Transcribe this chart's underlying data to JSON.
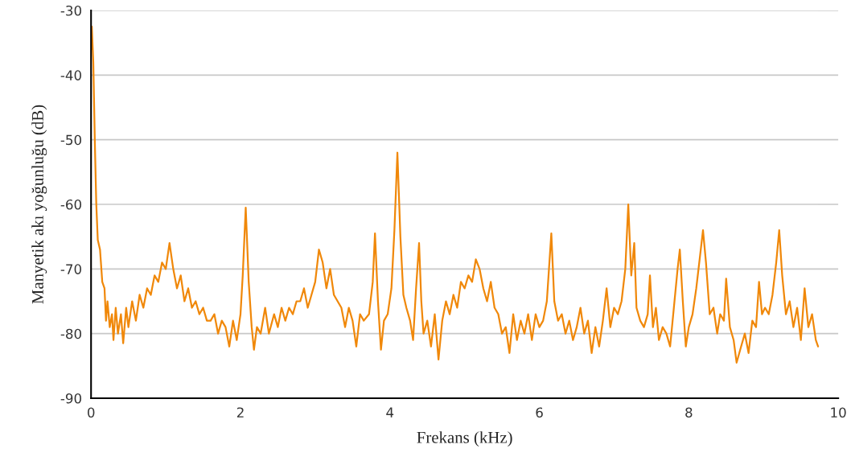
{
  "chart_data": {
    "type": "line",
    "xlabel": "Frekans (kHz)",
    "ylabel": "Manyetik akı yoğunluğu (dB)",
    "xlim": [
      0,
      10
    ],
    "xticks": [
      0,
      2,
      4,
      6,
      8,
      10
    ],
    "ylim": [
      -90,
      -30
    ],
    "yticks": [
      -90,
      -80,
      -70,
      -60,
      -50,
      -40,
      -30
    ],
    "grid": "y",
    "marker": "none",
    "line_style": "solid",
    "series": [
      {
        "color": "#f0880a",
        "x": [
          0,
          0.01,
          0.03,
          0.05,
          0.07,
          0.09,
          0.12,
          0.15,
          0.18,
          0.2,
          0.22,
          0.25,
          0.28,
          0.3,
          0.33,
          0.36,
          0.4,
          0.43,
          0.47,
          0.5,
          0.55,
          0.6,
          0.65,
          0.7,
          0.75,
          0.8,
          0.85,
          0.9,
          0.95,
          1.0,
          1.05,
          1.1,
          1.15,
          1.2,
          1.25,
          1.3,
          1.35,
          1.4,
          1.45,
          1.5,
          1.55,
          1.6,
          1.65,
          1.7,
          1.75,
          1.8,
          1.85,
          1.9,
          1.95,
          2.0,
          2.03,
          2.07,
          2.11,
          2.15,
          2.18,
          2.22,
          2.27,
          2.33,
          2.38,
          2.45,
          2.5,
          2.55,
          2.6,
          2.65,
          2.7,
          2.75,
          2.8,
          2.85,
          2.9,
          2.95,
          3.0,
          3.05,
          3.1,
          3.15,
          3.2,
          3.25,
          3.3,
          3.35,
          3.4,
          3.45,
          3.5,
          3.55,
          3.6,
          3.65,
          3.72,
          3.77,
          3.8,
          3.84,
          3.88,
          3.92,
          3.97,
          4.02,
          4.06,
          4.1,
          4.14,
          4.18,
          4.22,
          4.27,
          4.31,
          4.35,
          4.39,
          4.42,
          4.45,
          4.5,
          4.55,
          4.6,
          4.65,
          4.7,
          4.75,
          4.8,
          4.85,
          4.9,
          4.95,
          5.0,
          5.05,
          5.1,
          5.15,
          5.2,
          5.25,
          5.3,
          5.35,
          5.4,
          5.45,
          5.5,
          5.55,
          5.6,
          5.65,
          5.7,
          5.75,
          5.8,
          5.85,
          5.9,
          5.95,
          6.0,
          6.05,
          6.1,
          6.16,
          6.2,
          6.25,
          6.3,
          6.35,
          6.4,
          6.45,
          6.5,
          6.55,
          6.6,
          6.65,
          6.7,
          6.75,
          6.8,
          6.85,
          6.9,
          6.95,
          7.0,
          7.05,
          7.1,
          7.15,
          7.19,
          7.23,
          7.27,
          7.3,
          7.35,
          7.4,
          7.45,
          7.48,
          7.52,
          7.56,
          7.6,
          7.65,
          7.7,
          7.75,
          7.8,
          7.85,
          7.88,
          7.92,
          7.96,
          8.0,
          8.05,
          8.1,
          8.15,
          8.19,
          8.23,
          8.28,
          8.33,
          8.38,
          8.42,
          8.47,
          8.5,
          8.55,
          8.6,
          8.64,
          8.7,
          8.75,
          8.8,
          8.85,
          8.9,
          8.94,
          8.98,
          9.02,
          9.07,
          9.12,
          9.17,
          9.21,
          9.25,
          9.3,
          9.35,
          9.4,
          9.45,
          9.5,
          9.55,
          9.6,
          9.65,
          9.7,
          9.73
        ],
        "values": [
          -36,
          -32.5,
          -38,
          -50,
          -60,
          -65.5,
          -67,
          -72,
          -73,
          -78,
          -75,
          -79,
          -77,
          -81,
          -76,
          -80,
          -77,
          -81.5,
          -76,
          -79,
          -75,
          -78,
          -74,
          -76,
          -73,
          -74,
          -71,
          -72,
          -69,
          -70,
          -66,
          -70,
          -73,
          -71,
          -75,
          -73,
          -76,
          -75,
          -77,
          -76,
          -78,
          -78,
          -77,
          -80,
          -78,
          -79,
          -82,
          -78,
          -81,
          -77,
          -71,
          -60.5,
          -72,
          -79,
          -82.5,
          -79,
          -80,
          -76,
          -80,
          -77,
          -79,
          -76,
          -78,
          -76,
          -77,
          -75,
          -75,
          -73,
          -76,
          -74,
          -72,
          -67,
          -69,
          -73,
          -70,
          -74,
          -75,
          -76,
          -79,
          -76,
          -78,
          -82,
          -77,
          -78,
          -77,
          -72,
          -64.5,
          -75,
          -82.5,
          -78,
          -77,
          -73,
          -64,
          -52,
          -65,
          -74,
          -76,
          -78,
          -81,
          -73,
          -66,
          -75,
          -80,
          -78,
          -82,
          -77,
          -84,
          -78,
          -75,
          -77,
          -74,
          -76,
          -72,
          -73,
          -71,
          -72,
          -68.5,
          -70,
          -73,
          -75,
          -72,
          -76,
          -77,
          -80,
          -79,
          -83,
          -77,
          -81,
          -78,
          -80,
          -77,
          -81,
          -77,
          -79,
          -78,
          -75,
          -64.5,
          -75,
          -78,
          -77,
          -80,
          -78,
          -81,
          -79,
          -76,
          -80,
          -78,
          -83,
          -79,
          -82,
          -78,
          -73,
          -79,
          -76,
          -77,
          -75,
          -70,
          -60,
          -71,
          -66,
          -76,
          -78,
          -79,
          -77,
          -71,
          -79,
          -76,
          -81,
          -79,
          -80,
          -82,
          -76,
          -70,
          -67,
          -75,
          -82,
          -79,
          -77,
          -73,
          -68,
          -64,
          -69,
          -77,
          -76,
          -80,
          -77,
          -78,
          -71.5,
          -79,
          -81,
          -84.5,
          -82,
          -80,
          -83,
          -78,
          -79,
          -72,
          -77,
          -76,
          -77,
          -74,
          -69,
          -64,
          -71,
          -77,
          -75,
          -79,
          -76,
          -81,
          -73,
          -79,
          -77,
          -81,
          -82
        ]
      }
    ]
  }
}
